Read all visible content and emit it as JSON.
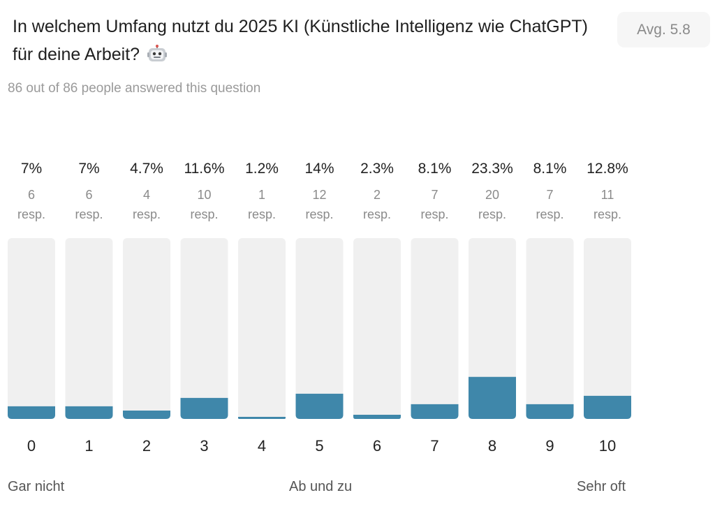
{
  "question": {
    "title": "In welchem Umfang nutzt du 2025 KI (Künstliche Intelligenz wie ChatGPT) für deine Arbeit?",
    "emoji_icon": "robot-face-icon"
  },
  "average": "Avg. 5.8",
  "answered": "86 out of 86 people answered this question",
  "scale_labels": {
    "left": "Gar nicht",
    "middle": "Ab und zu",
    "right": "Sehr oft"
  },
  "colors": {
    "bar_fill": "#3f87aa",
    "bar_track": "#f0f0f0"
  },
  "chart_data": {
    "type": "bar",
    "categories": [
      "0",
      "1",
      "2",
      "3",
      "4",
      "5",
      "6",
      "7",
      "8",
      "9",
      "10"
    ],
    "percent_labels": [
      "7%",
      "7%",
      "4.7%",
      "11.6%",
      "1.2%",
      "14%",
      "2.3%",
      "8.1%",
      "23.3%",
      "8.1%",
      "12.8%"
    ],
    "values": [
      6,
      6,
      4,
      10,
      1,
      12,
      2,
      7,
      20,
      7,
      11
    ],
    "resp_label": "resp.",
    "ylim": [
      0,
      86
    ],
    "grid": false
  }
}
